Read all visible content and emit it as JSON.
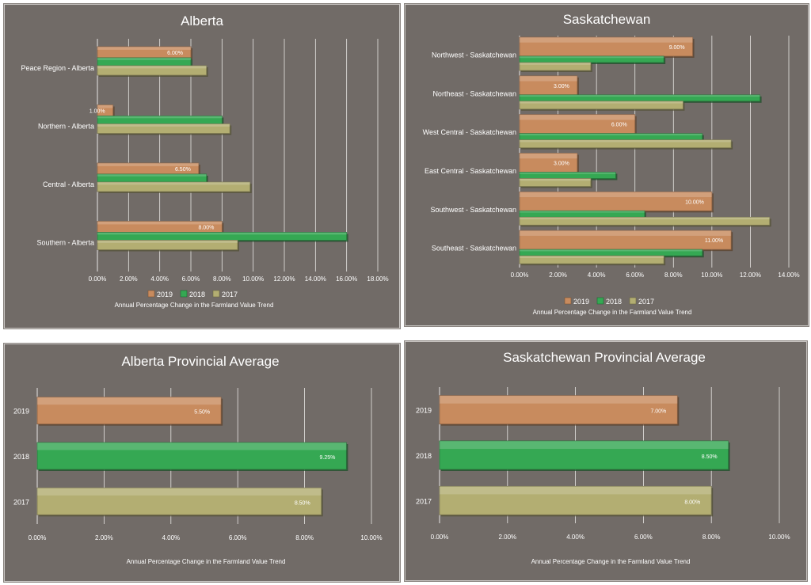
{
  "colors": {
    "2019": "#c88b5e",
    "2018": "#35a853",
    "2017": "#b3ae72",
    "panel": "#716b67",
    "grid": "#e8e6e4",
    "text": "#ffffff"
  },
  "chart_data": [
    {
      "id": "alberta",
      "type": "bar",
      "orientation": "horizontal",
      "title": "Alberta",
      "categories": [
        "Peace Region - Alberta",
        "Northern - Alberta",
        "Central - Alberta",
        "Southern - Alberta"
      ],
      "series": [
        {
          "name": "2019",
          "values": [
            6.0,
            1.0,
            6.5,
            8.0
          ],
          "labels": [
            "6.00%",
            "1.00%",
            "6.50%",
            "8.00%"
          ]
        },
        {
          "name": "2018",
          "values": [
            6.0,
            8.0,
            7.0,
            16.0
          ]
        },
        {
          "name": "2017",
          "values": [
            7.0,
            8.5,
            9.8,
            9.0
          ]
        }
      ],
      "xlim": [
        0,
        18
      ],
      "ticks": [
        "0.00%",
        "2.00%",
        "4.00%",
        "6.00%",
        "8.00%",
        "10.00%",
        "12.00%",
        "14.00%",
        "16.00%",
        "18.00%"
      ],
      "xlabel": "Annual Percentage Change in the Farmland Value Trend",
      "legend": [
        "2019",
        "2018",
        "2017"
      ],
      "legend_position": "bottom",
      "grid": true
    },
    {
      "id": "sask",
      "type": "bar",
      "orientation": "horizontal",
      "title": "Saskatchewan",
      "categories": [
        "Northwest - Saskatchewan",
        "Northeast - Saskatchewan",
        "West Central - Saskatchewan",
        "East Central - Saskatchewan",
        "Southwest - Saskatchewan",
        "Southeast - Saskatchewan"
      ],
      "series": [
        {
          "name": "2019",
          "values": [
            9.0,
            3.0,
            6.0,
            3.0,
            10.0,
            11.0
          ],
          "labels": [
            "9.00%",
            "3.00%",
            "6.00%",
            "3.00%",
            "10.00%",
            "11.00%"
          ]
        },
        {
          "name": "2018",
          "values": [
            7.5,
            12.5,
            9.5,
            5.0,
            6.5,
            9.5
          ]
        },
        {
          "name": "2017",
          "values": [
            3.7,
            8.5,
            11.0,
            3.7,
            13.0,
            7.5
          ]
        }
      ],
      "xlim": [
        0,
        14
      ],
      "ticks": [
        "0.00%",
        "2.00%",
        "4.00%",
        "6.00%",
        "8.00%",
        "10.00%",
        "12.00%",
        "14.00%"
      ],
      "xlabel": "Annual Percentage Change in the Farmland Value Trend",
      "legend": [
        "2019",
        "2018",
        "2017"
      ],
      "legend_position": "bottom",
      "grid": true
    },
    {
      "id": "abavg",
      "type": "bar",
      "orientation": "horizontal",
      "title": "Alberta Provincial Average",
      "categories": [
        "2019",
        "2018",
        "2017"
      ],
      "values": [
        5.5,
        9.25,
        8.5
      ],
      "labels": [
        "5.50%",
        "9.25%",
        "8.50%"
      ],
      "xlim": [
        0,
        10
      ],
      "ticks": [
        "0.00%",
        "2.00%",
        "4.00%",
        "6.00%",
        "8.00%",
        "10.00%"
      ],
      "xlabel": "Annual Percentage Change in the Farmland Value Trend",
      "grid": true
    },
    {
      "id": "skavg",
      "type": "bar",
      "orientation": "horizontal",
      "title": "Saskatchewan Provincial Average",
      "categories": [
        "2019",
        "2018",
        "2017"
      ],
      "values": [
        7.0,
        8.5,
        8.0
      ],
      "labels": [
        "7.00%",
        "8.50%",
        "8.00%"
      ],
      "xlim": [
        0,
        10
      ],
      "ticks": [
        "0.00%",
        "2.00%",
        "4.00%",
        "6.00%",
        "8.00%",
        "10.00%"
      ],
      "xlabel": "Annual Percentage Change in the Farmland Value Trend",
      "grid": true
    }
  ]
}
